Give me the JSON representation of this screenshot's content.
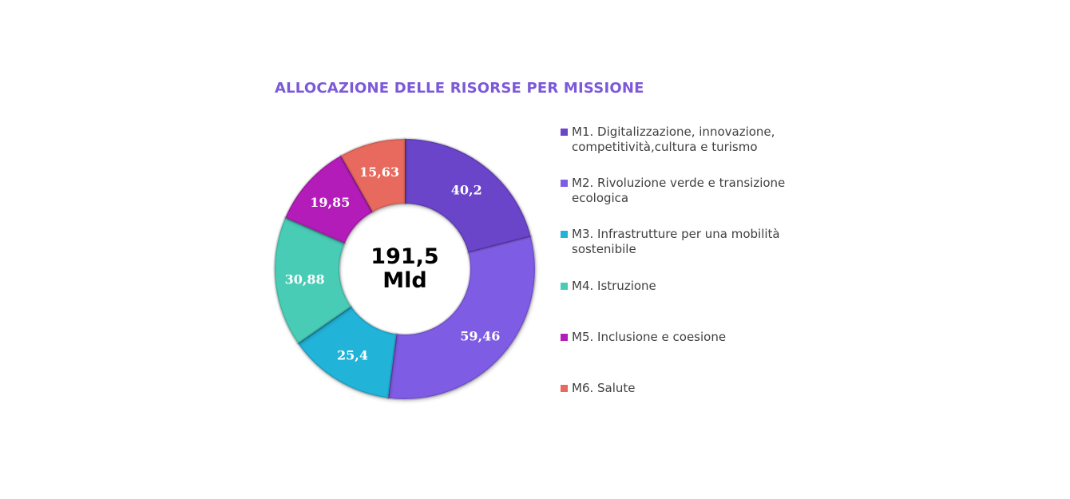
{
  "chart_data": {
    "type": "pie",
    "title": "ALLOCAZIONE DELLE RISORSE PER MISSIONE",
    "center_label": [
      "191,5",
      "Mld"
    ],
    "categories": [
      "M1. Digitalizzazione, innovazione, competitività,cultura e turismo",
      "M2. Rivoluzione verde e transizione ecologica",
      "M3. Infrastrutture per una mobilità sostenibile",
      "M4. Istruzione",
      "M5. Inclusione e coesione",
      "M6. Salute"
    ],
    "values": [
      40.2,
      59.46,
      25.4,
      30.88,
      19.85,
      15.63
    ],
    "value_labels": [
      "40,2",
      "59,46",
      "25,4",
      "30,88",
      "19,85",
      "15,63"
    ],
    "colors": [
      "#6a44c9",
      "#7f5ce4",
      "#21b3d9",
      "#48ccb6",
      "#b31db8",
      "#e8695d"
    ],
    "style": "donut",
    "legend": "right"
  }
}
